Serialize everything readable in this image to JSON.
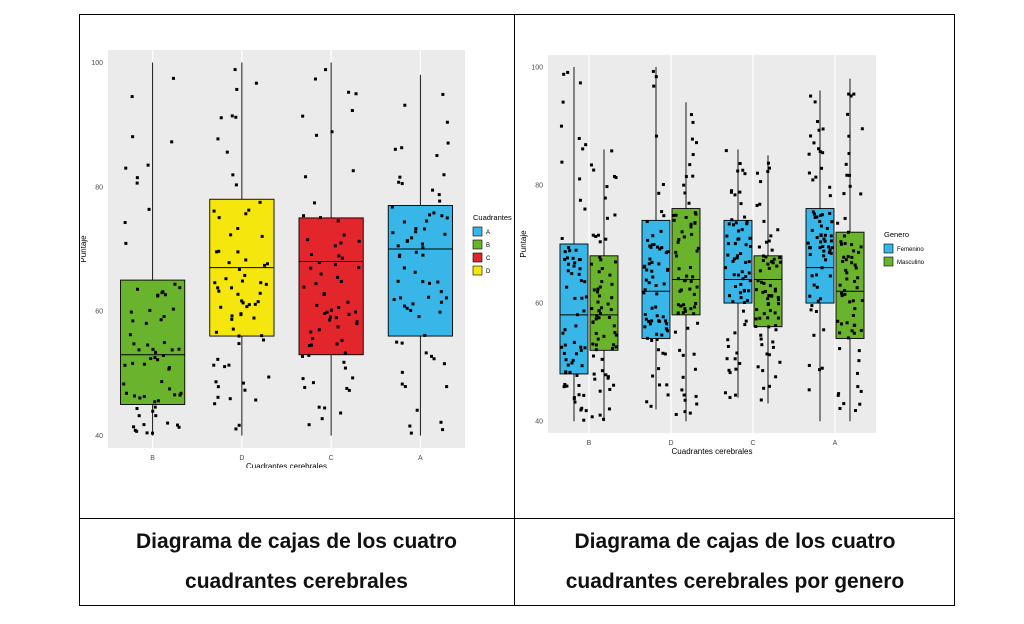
{
  "captions": {
    "left": {
      "line1": "Diagrama de cajas de los cuatro",
      "line2": "cuadrantes cerebrales"
    },
    "right": {
      "line1": "Diagrama de cajas de los cuatro",
      "line2": "cuadrantes cerebrales por genero"
    }
  },
  "colors": {
    "panel_bg": "#ebebeb",
    "grid": "#ffffff",
    "A": "#38b6e8",
    "B": "#6ab42d",
    "C": "#e3262b",
    "D": "#f5e60e",
    "Femenino": "#38b6e8",
    "Masculino": "#6ab42d"
  },
  "chart_data": [
    {
      "type": "boxplot",
      "xlabel": "Cuadrantes cerebrales",
      "ylabel": "Puntaje",
      "categories": [
        "B",
        "D",
        "C",
        "A"
      ],
      "ylim": [
        38,
        102
      ],
      "yticks": [
        40,
        60,
        80,
        100
      ],
      "grid": true,
      "legend": {
        "title": "Cuadrantes",
        "position": "right",
        "entries": [
          "A",
          "B",
          "C",
          "D"
        ]
      },
      "boxes": [
        {
          "category": "B",
          "color": "B",
          "min": 40,
          "q1": 45,
          "median": 53,
          "q3": 65,
          "max": 100
        },
        {
          "category": "D",
          "color": "D",
          "min": 40,
          "q1": 56,
          "median": 67,
          "q3": 78,
          "max": 100
        },
        {
          "category": "C",
          "color": "C",
          "min": 40,
          "q1": 53,
          "median": 68,
          "q3": 75,
          "max": 100
        },
        {
          "category": "A",
          "color": "A",
          "min": 40,
          "q1": 56,
          "median": 70,
          "q3": 77,
          "max": 98
        }
      ]
    },
    {
      "type": "boxplot",
      "xlabel": "Cuadrantes cerebrales",
      "ylabel": "Puntaje",
      "categories": [
        "B",
        "D",
        "C",
        "A"
      ],
      "ylim": [
        38,
        102
      ],
      "yticks": [
        40,
        60,
        80,
        100
      ],
      "grid": true,
      "legend": {
        "title": "Genero",
        "position": "right",
        "entries": [
          "Femenino",
          "Masculino"
        ]
      },
      "boxes": [
        {
          "category": "B",
          "group": "Femenino",
          "min": 40,
          "q1": 48,
          "median": 58,
          "q3": 70,
          "max": 100
        },
        {
          "category": "B",
          "group": "Masculino",
          "min": 40,
          "q1": 52,
          "median": 58,
          "q3": 68,
          "max": 86
        },
        {
          "category": "D",
          "group": "Femenino",
          "min": 42,
          "q1": 54,
          "median": 62,
          "q3": 74,
          "max": 100
        },
        {
          "category": "D",
          "group": "Masculino",
          "min": 40,
          "q1": 58,
          "median": 64,
          "q3": 76,
          "max": 94
        },
        {
          "category": "C",
          "group": "Femenino",
          "min": 44,
          "q1": 60,
          "median": 64,
          "q3": 74,
          "max": 86
        },
        {
          "category": "C",
          "group": "Masculino",
          "min": 43,
          "q1": 56,
          "median": 64,
          "q3": 68,
          "max": 85
        },
        {
          "category": "A",
          "group": "Femenino",
          "min": 40,
          "q1": 60,
          "median": 66,
          "q3": 76,
          "max": 96
        },
        {
          "category": "A",
          "group": "Masculino",
          "min": 40,
          "q1": 54,
          "median": 62,
          "q3": 72,
          "max": 98
        }
      ]
    }
  ]
}
